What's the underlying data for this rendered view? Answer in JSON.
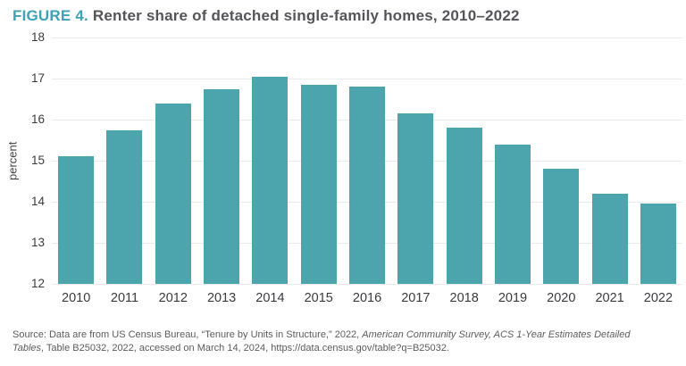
{
  "title": {
    "label": "FIGURE 4.",
    "text": "Renter share of detached single-family homes, 2010–2022"
  },
  "chart_data": {
    "type": "bar",
    "title": "FIGURE 4. Renter share of detached single-family homes, 2010–2022",
    "categories": [
      "2010",
      "2011",
      "2012",
      "2013",
      "2014",
      "2015",
      "2016",
      "2017",
      "2018",
      "2019",
      "2020",
      "2021",
      "2022"
    ],
    "values": [
      15.1,
      15.75,
      16.4,
      16.75,
      17.05,
      16.85,
      16.8,
      16.15,
      15.8,
      15.4,
      14.8,
      14.2,
      13.95
    ],
    "xlabel": "",
    "ylabel": "percent",
    "ylim": [
      12,
      18
    ],
    "yticks": [
      12,
      13,
      14,
      15,
      16,
      17,
      18
    ],
    "grid": true,
    "legend": "none",
    "bar_color": "#4CA5AC"
  },
  "source": {
    "lines": [
      [
        {
          "text": "Source: Data are from US Census Bureau, “Tenure by Units in Structure,” 2022, ",
          "italic": false
        },
        {
          "text": "American Community Survey, ACS 1-Year Estimates Detailed",
          "italic": true
        }
      ],
      [
        {
          "text": "Tables",
          "italic": true
        },
        {
          "text": ", Table B25032, 2022, accessed on March 14, 2024, https://data.census.gov/table?q=B25032.",
          "italic": false
        }
      ]
    ]
  },
  "colors": {
    "accent_teal": "#3EA1B6",
    "bar_teal": "#4CA5AC",
    "gridline": "#EAEAEB",
    "title_text": "#54555A",
    "axis_text": "#3A3B3F",
    "source_text": "#5B5C5E"
  }
}
